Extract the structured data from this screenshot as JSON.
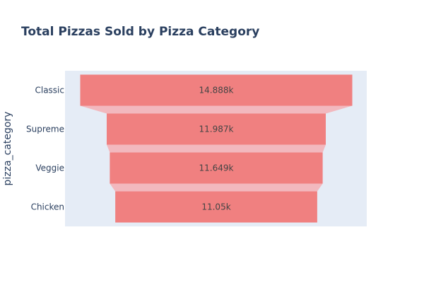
{
  "chart_data": {
    "type": "funnel",
    "title": "Total Pizzas Sold by Pizza Category",
    "ylabel": "pizza_category",
    "xlabel": "",
    "categories": [
      "Classic",
      "Supreme",
      "Veggie",
      "Chicken"
    ],
    "values": [
      14888,
      11987,
      11649,
      11050
    ],
    "value_labels": [
      "14.888k",
      "11.987k",
      "11.649k",
      "11.05k"
    ],
    "grid": false,
    "colors": {
      "bar": "#f08080",
      "connector": "#f2b8be",
      "plot_bg": "#e5ecf6",
      "text": "#2a3f5f"
    }
  }
}
